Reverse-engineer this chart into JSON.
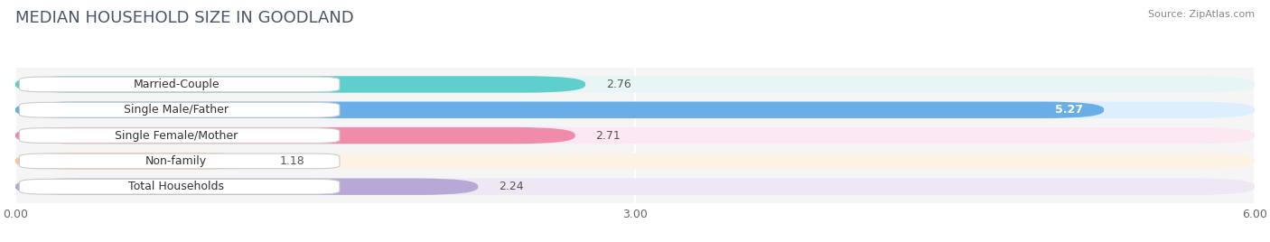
{
  "title": "MEDIAN HOUSEHOLD SIZE IN GOODLAND",
  "source": "Source: ZipAtlas.com",
  "categories": [
    "Married-Couple",
    "Single Male/Father",
    "Single Female/Mother",
    "Non-family",
    "Total Households"
  ],
  "values": [
    2.76,
    5.27,
    2.71,
    1.18,
    2.24
  ],
  "bar_colors": [
    "#5ecfcc",
    "#6aaee8",
    "#f08baa",
    "#f5c99a",
    "#b8a8d8"
  ],
  "bar_bg_colors": [
    "#e8f5f5",
    "#ddeeff",
    "#fce8f2",
    "#fdf3e5",
    "#eee8f5"
  ],
  "xlim": [
    0,
    6.0
  ],
  "xticks": [
    0.0,
    3.0,
    6.0
  ],
  "xtick_labels": [
    "0.00",
    "3.00",
    "6.00"
  ],
  "background_color": "#ffffff",
  "plot_bg_color": "#f5f5f5",
  "bar_height": 0.65,
  "title_fontsize": 13,
  "label_fontsize": 9,
  "value_fontsize": 9,
  "value_inside_threshold": 4.0
}
